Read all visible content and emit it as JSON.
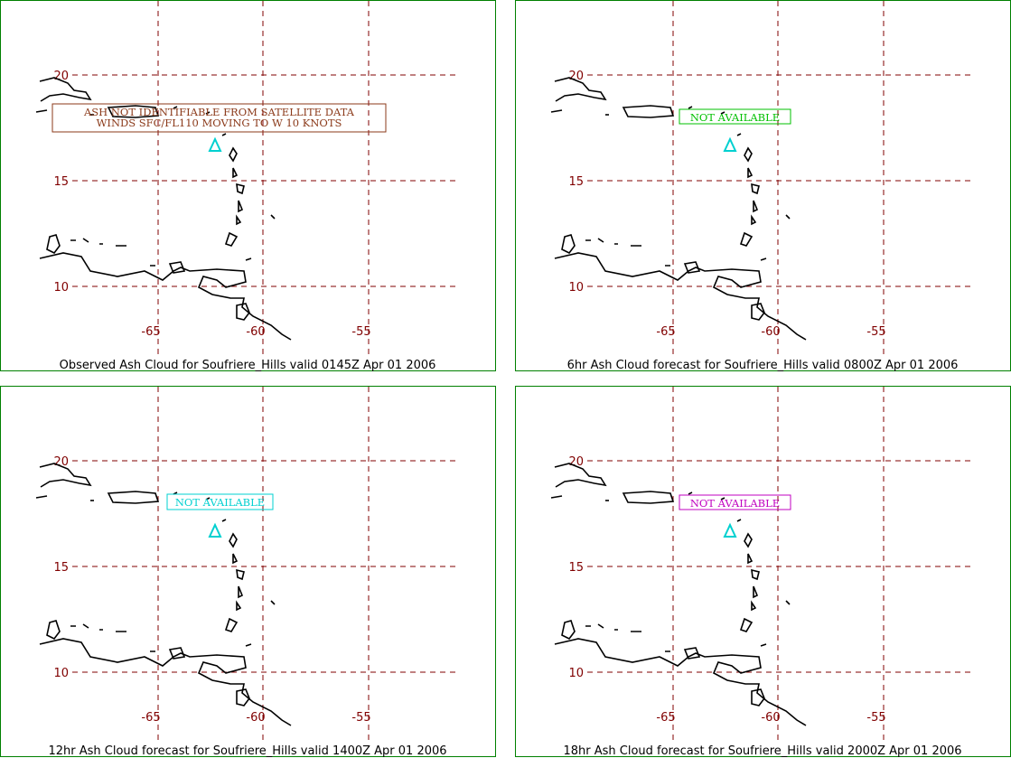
{
  "lat_labels": [
    "20",
    "15",
    "10"
  ],
  "lon_labels": [
    "-65",
    "-60",
    "-55"
  ],
  "panels": [
    {
      "caption": "Observed Ash Cloud for Soufriere_Hills valid 0145Z Apr 01 2006",
      "annotation": [
        "ASH NOT IDENTIFIABLE FROM SATELLITE DATA",
        "WINDS SFC/FL110 MOVING TO W 10 KNOTS"
      ],
      "annotation_color": "#8b3a1a"
    },
    {
      "caption": "6hr Ash Cloud forecast for Soufriere_Hills valid 0800Z Apr 01 2006",
      "annotation": [
        "NOT AVAILABLE"
      ],
      "annotation_color": "#00c000"
    },
    {
      "caption": "12hr Ash Cloud forecast for Soufriere_Hills valid 1400Z Apr 01 2006",
      "annotation": [
        "NOT AVAILABLE"
      ],
      "annotation_color": "#00d0d0"
    },
    {
      "caption": "18hr Ash Cloud forecast for Soufriere_Hills valid 2000Z Apr 01 2006",
      "annotation": [
        "NOT AVAILABLE"
      ],
      "annotation_color": "#c000c0"
    }
  ]
}
